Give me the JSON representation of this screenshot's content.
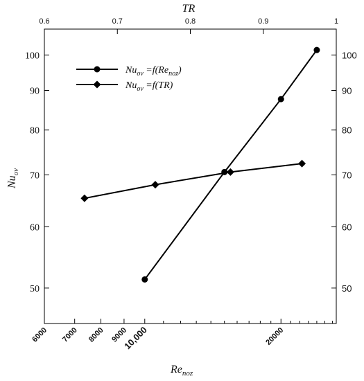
{
  "chart_data": {
    "type": "line",
    "title": "",
    "axes": {
      "x_bottom": {
        "label": "Re",
        "label_sub": "noz",
        "scale": "log",
        "range": [
          6000,
          26500
        ],
        "ticks": [
          {
            "value": 6000,
            "label": "6000"
          },
          {
            "value": 7000,
            "label": "7000"
          },
          {
            "value": 8000,
            "label": "8000"
          },
          {
            "value": 9000,
            "label": "9000"
          },
          {
            "value": 10000,
            "label": "10,000"
          },
          {
            "value": 20000,
            "label": "20000"
          }
        ]
      },
      "x_top": {
        "label": "TR",
        "scale": "linear",
        "range": [
          0.6,
          1.0
        ],
        "ticks": [
          {
            "value": 0.6,
            "label": "0.6"
          },
          {
            "value": 0.7,
            "label": "0.7"
          },
          {
            "value": 0.8,
            "label": "0.8"
          },
          {
            "value": 0.9,
            "label": "0.9"
          },
          {
            "value": 1.0,
            "label": "1"
          }
        ]
      },
      "y_left": {
        "label": "Nu",
        "label_sub": "ov",
        "scale": "log",
        "range": [
          45,
          108
        ],
        "ticks": [
          {
            "value": 50,
            "label": "50"
          },
          {
            "value": 60,
            "label": "60"
          },
          {
            "value": 70,
            "label": "70"
          },
          {
            "value": 80,
            "label": "80"
          },
          {
            "value": 90,
            "label": "90"
          },
          {
            "value": 100,
            "label": "100"
          }
        ]
      },
      "y_right": {
        "scale": "log",
        "range": [
          45,
          108
        ],
        "ticks": [
          {
            "value": 50,
            "label": "50"
          },
          {
            "value": 60,
            "label": "60"
          },
          {
            "value": 70,
            "label": "70"
          },
          {
            "value": 80,
            "label": "80"
          },
          {
            "value": 90,
            "label": "90"
          },
          {
            "value": 100,
            "label": "100"
          }
        ]
      }
    },
    "series": [
      {
        "name_main": "Nu",
        "name_sub": "ov",
        "name_rest": " =f(Re",
        "name_sub2": "noz",
        "name_end": ")",
        "marker": "circle",
        "x_axis": "bottom",
        "points": [
          {
            "x": 10000,
            "y": 51.3
          },
          {
            "x": 15000,
            "y": 70.6
          },
          {
            "x": 20000,
            "y": 87.7
          },
          {
            "x": 24000,
            "y": 101.5
          }
        ]
      },
      {
        "name_main": "Nu",
        "name_sub": "ov",
        "name_rest": " =f(TR)",
        "name_sub2": "",
        "name_end": "",
        "marker": "diamond",
        "x_axis": "top",
        "points": [
          {
            "x": 0.655,
            "y": 65.3
          },
          {
            "x": 0.752,
            "y": 68.0
          },
          {
            "x": 0.855,
            "y": 70.6
          },
          {
            "x": 0.953,
            "y": 72.4
          }
        ]
      }
    ],
    "legend": {
      "position": "top-left"
    },
    "grid": false
  }
}
